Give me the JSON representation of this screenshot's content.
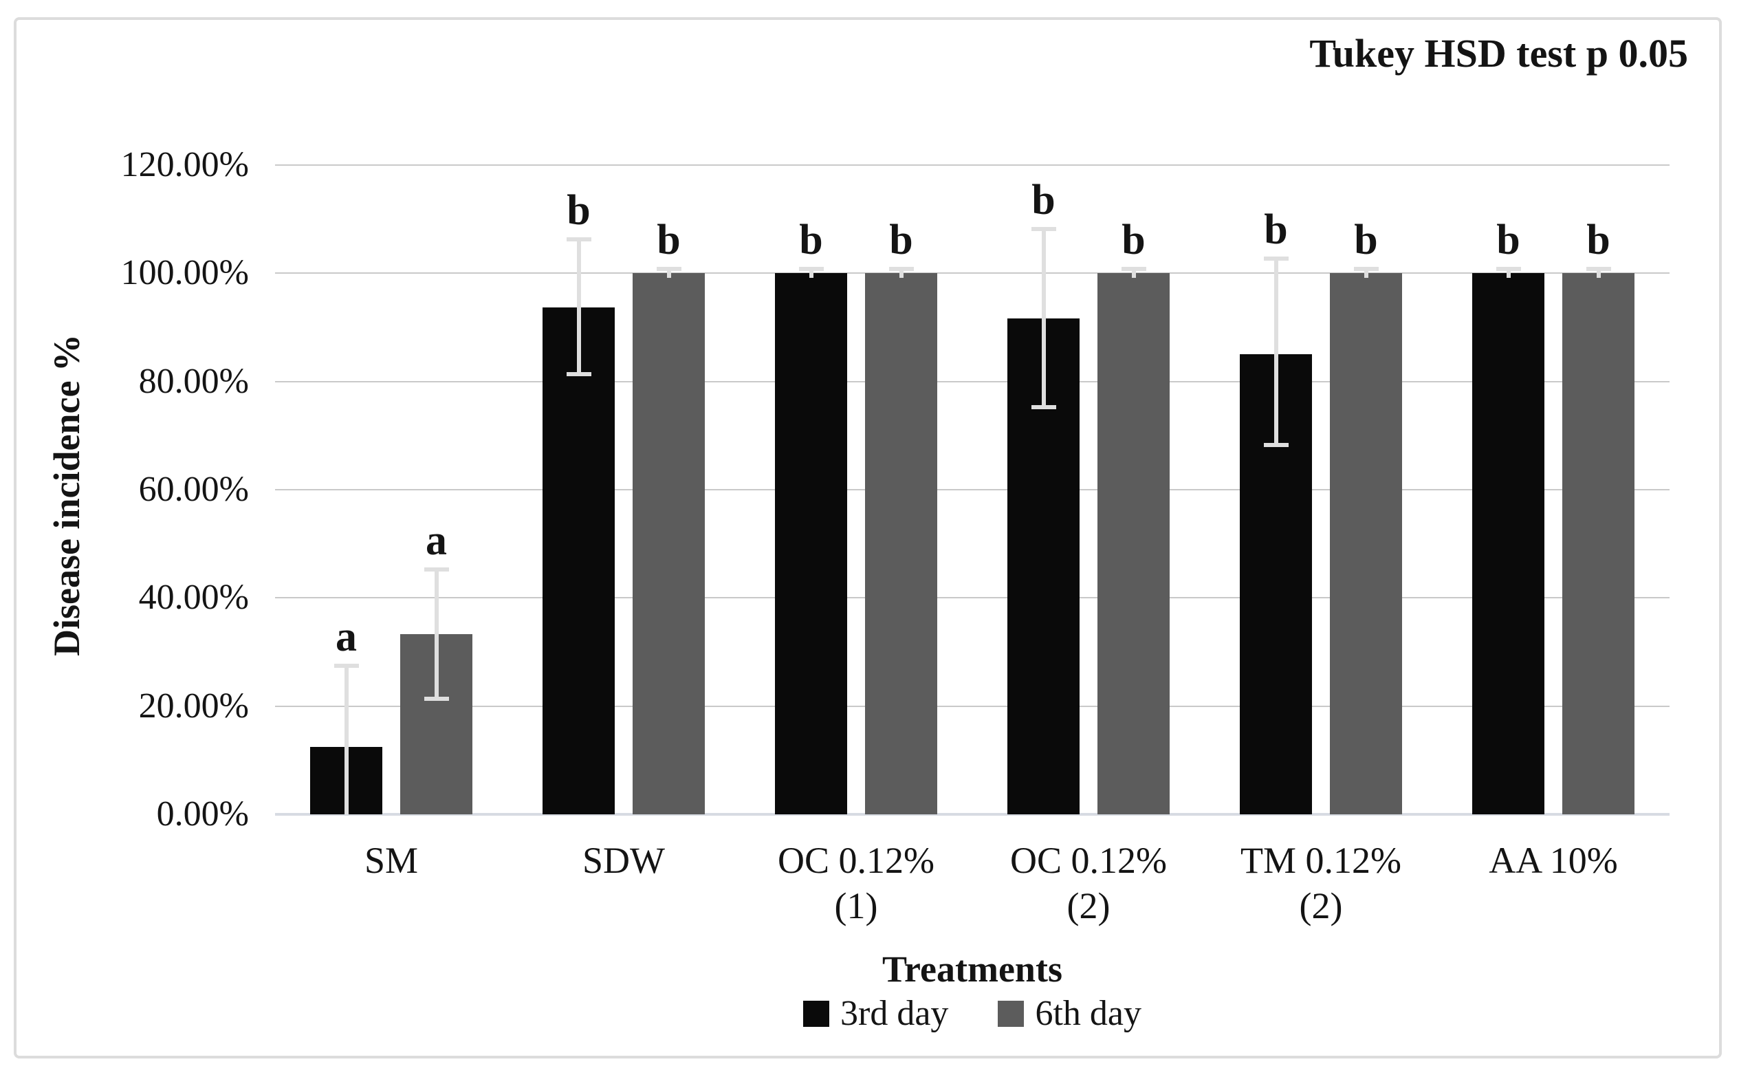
{
  "figure": {
    "border_color": "#dcdcdc",
    "background": "#ffffff"
  },
  "chart_data": {
    "type": "bar",
    "title": "Tukey HSD test p 0.05",
    "xlabel": "Treatments",
    "ylabel": "Disease incidence %",
    "ylim": [
      0,
      120
    ],
    "ytick_step": 20,
    "ytick_labels": [
      "0.00%",
      "20.00%",
      "40.00%",
      "60.00%",
      "80.00%",
      "100.00%",
      "120.00%"
    ],
    "grid": true,
    "legend_position": "bottom-center",
    "categories": [
      [
        "SM"
      ],
      [
        "SDW"
      ],
      [
        "OC 0.12%",
        "(1)"
      ],
      [
        "OC 0.12%",
        "(2)"
      ],
      [
        "TM 0.12%",
        "(2)"
      ],
      [
        "AA 10%"
      ]
    ],
    "series": [
      {
        "name": "3rd day",
        "color": "#0a0a0a",
        "values": [
          12.5,
          93.7,
          100,
          91.7,
          85.0,
          100
        ],
        "error_low": [
          0,
          81.3,
          99.2,
          75.2,
          68.3,
          99.2
        ],
        "error_high": [
          27.5,
          106.3,
          100.8,
          108.2,
          102.7,
          100.8
        ],
        "cap_low_visible": [
          false,
          true,
          false,
          true,
          true,
          false
        ],
        "letters": [
          "a",
          "b",
          "b",
          "b",
          "b",
          "b"
        ]
      },
      {
        "name": "6th day",
        "color": "#5c5c5c",
        "values": [
          33.3,
          100,
          100,
          100,
          100,
          100
        ],
        "error_low": [
          21.3,
          99.2,
          99.2,
          99.2,
          99.2,
          99.2
        ],
        "error_high": [
          45.3,
          100.8,
          100.8,
          100.8,
          100.8,
          100.8
        ],
        "cap_low_visible": [
          true,
          false,
          false,
          false,
          false,
          false
        ],
        "letters": [
          "a",
          "b",
          "b",
          "b",
          "b",
          "b"
        ]
      }
    ],
    "colors": {
      "error_bar": "#dfdfdf",
      "gridline": "#c9c9c9",
      "axis_line": "#d7dbe2",
      "text": "#141414"
    }
  }
}
